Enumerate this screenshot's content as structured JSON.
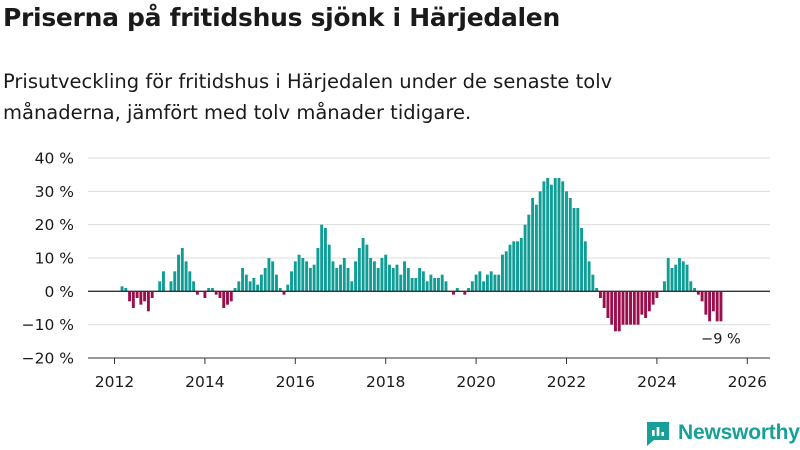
{
  "title": "Priserna på fritidshus sjönk i Härjedalen",
  "subtitle": "Prisutveckling för fritidshus i Härjedalen under de senaste tolv månaderna, jämfört med tolv månader tidigare.",
  "brand": {
    "name": "Newsworthy",
    "icon": "newsworthy-logo-icon"
  },
  "colors": {
    "positive": "#0f9d95",
    "negative": "#990f4b",
    "grid": "#dddddd",
    "axis": "#333333"
  },
  "chart_data": {
    "type": "bar",
    "ylim": [
      -20,
      40
    ],
    "yticks": [
      -20,
      -10,
      0,
      10,
      20,
      30,
      40
    ],
    "ytick_labels": [
      "−20 %",
      "−10 %",
      "0 %",
      "10 %",
      "20 %",
      "30 %",
      "40 %"
    ],
    "xlim": [
      2011.5,
      2026.5
    ],
    "xticks": [
      2012,
      2014,
      2016,
      2018,
      2020,
      2022,
      2024,
      2026
    ],
    "xtick_labels": [
      "2012",
      "2014",
      "2016",
      "2018",
      "2020",
      "2022",
      "2024",
      "2026"
    ],
    "start_year": 2012,
    "start_month": 1,
    "values": [
      null,
      null,
      1.5,
      1,
      -3,
      -5,
      -2,
      -4,
      -3,
      -6,
      -2,
      0,
      3,
      6,
      0,
      3,
      6,
      11,
      13,
      9,
      6,
      3,
      -1,
      0,
      -2,
      1,
      1,
      -1,
      -2,
      -5,
      -4,
      -3,
      1,
      3,
      7,
      5,
      3,
      4,
      2,
      5,
      7,
      10,
      9,
      5,
      1,
      -1,
      2,
      6,
      9,
      11,
      10,
      9,
      7,
      8,
      13,
      20,
      19,
      14,
      9,
      7,
      8,
      10,
      7,
      3,
      9,
      13,
      16,
      14,
      10,
      9,
      7,
      10,
      11,
      8,
      7,
      8,
      5,
      9,
      7,
      4,
      4,
      7,
      6,
      3,
      5,
      4,
      4,
      5,
      3,
      0,
      -1,
      1,
      0,
      -1,
      1,
      3,
      5,
      6,
      3,
      5,
      6,
      5,
      5,
      11,
      12,
      14,
      15,
      15,
      16,
      20,
      23,
      28,
      26,
      30,
      33,
      34,
      32,
      34,
      34,
      33,
      30,
      28,
      25,
      25,
      19,
      15,
      9,
      5,
      1,
      -2,
      -5,
      -8,
      -10,
      -12,
      -12,
      -10,
      -10,
      -10,
      -10,
      -10,
      -7,
      -8,
      -6,
      -4,
      -2,
      0,
      3,
      10,
      7,
      8,
      10,
      9,
      8,
      3,
      1,
      -1,
      -3,
      -7,
      -9,
      -6,
      -9,
      -9
    ],
    "annotation": {
      "label": "−9 %",
      "value": -9
    }
  }
}
